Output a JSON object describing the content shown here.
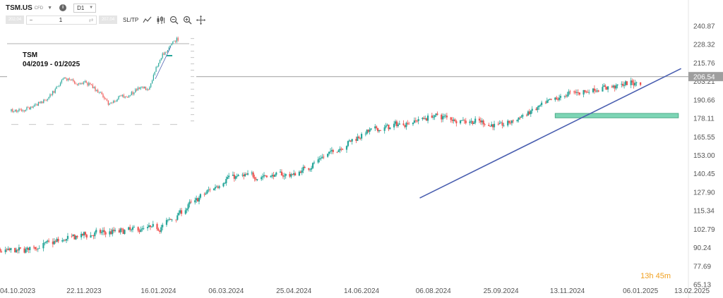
{
  "toolbar": {
    "symbol": "TSM.US",
    "symbol_type": "CFD",
    "interval": "D1",
    "quantity": "1",
    "sltp_label": "SL/TP",
    "sell_box": "202.04",
    "buy_box": "207.04"
  },
  "countdown": {
    "hours": "13h",
    "minutes": "45m"
  },
  "chart_data": [
    {
      "type": "candlestick",
      "symbol": "TSM.US",
      "interval": "D1",
      "y_ticks": [
        "240.87",
        "228.32",
        "215.76",
        "203.21",
        "190.66",
        "178.11",
        "165.55",
        "153.00",
        "140.45",
        "127.90",
        "115.34",
        "102.79",
        "90.24",
        "77.69",
        "65.13"
      ],
      "x_ticks": [
        "04.10.2023",
        "22.11.2023",
        "16.01.2024",
        "06.03.2024",
        "25.04.2024",
        "14.06.2024",
        "06.08.2024",
        "25.09.2024",
        "13.11.2024",
        "06.01.2025",
        "13.02.2025"
      ],
      "ylim": [
        65.13,
        240.87
      ],
      "current_price": "206.54",
      "path": [
        [
          "04.10.2023",
          88
        ],
        [
          "22.11.2023",
          99
        ],
        [
          "16.01.2024",
          104
        ],
        [
          "06.03.2024",
          138
        ],
        [
          "25.04.2024",
          140
        ],
        [
          "14.06.2024",
          168
        ],
        [
          "06.08.2024",
          180
        ],
        [
          "25.09.2024",
          173
        ],
        [
          "13.11.2024",
          195
        ],
        [
          "06.01.2025",
          203
        ]
      ],
      "trendline": [
        [
          "27.07.2024",
          124
        ],
        [
          "05.02.2025",
          212
        ]
      ],
      "support_zone": [
        178.5,
        181.5
      ],
      "support_zone_x": [
        "04.11.2024",
        "03.02.2025"
      ]
    },
    {
      "type": "line",
      "inset": true,
      "title": "TSM",
      "subtitle": "04/2019 - 01/2025"
    }
  ]
}
